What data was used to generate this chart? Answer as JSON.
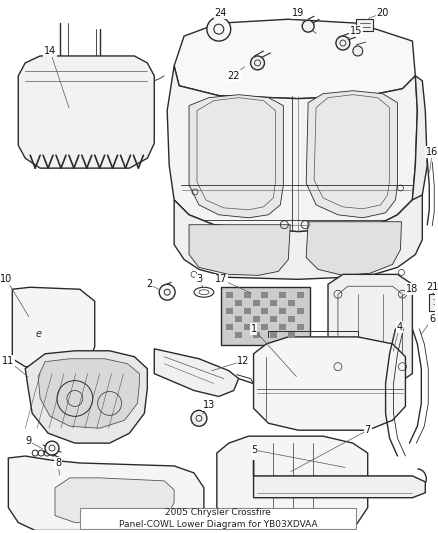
{
  "title": "2005 Chrysler Crossfire\nPanel-COWL Lower Diagram for YB03XDVAA",
  "background_color": "#ffffff",
  "title_fontsize": 6.5,
  "title_color": "#222222",
  "label_fontsize": 7.0,
  "label_color": "#111111",
  "line_color": "#2a2a2a",
  "line_color_light": "#555555"
}
